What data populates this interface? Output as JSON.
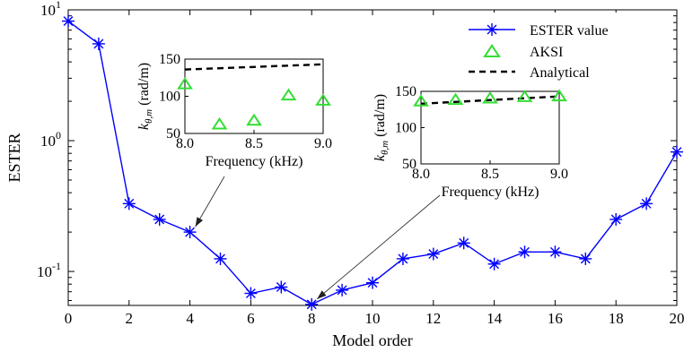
{
  "chart_data": [
    {
      "type": "line",
      "xlabel": "Model order",
      "ylabel": "ESTER",
      "y_scale": "log",
      "xlim": [
        0,
        20
      ],
      "ylim": [
        0.055,
        10
      ],
      "x_ticks": [
        "0",
        "2",
        "4",
        "6",
        "8",
        "10",
        "12",
        "14",
        "16",
        "18",
        "20"
      ],
      "y_ticks": [
        {
          "base": "10",
          "exp": "1",
          "value": 10
        },
        {
          "base": "10",
          "exp": "0",
          "value": 1
        },
        {
          "base": "10",
          "exp": "-1",
          "value": 0.1
        }
      ],
      "legend_position": "top-right",
      "series": [
        {
          "name": "ESTER value",
          "color": "#0000ff",
          "marker": "asterisk",
          "x": [
            0,
            1,
            2,
            3,
            4,
            5,
            6,
            7,
            8,
            9,
            10,
            11,
            12,
            13,
            14,
            15,
            16,
            17,
            18,
            19,
            20
          ],
          "values": [
            8.2,
            5.5,
            0.33,
            0.25,
            0.2,
            0.125,
            0.068,
            0.076,
            0.056,
            0.072,
            0.082,
            0.125,
            0.136,
            0.165,
            0.114,
            0.141,
            0.141,
            0.125,
            0.25,
            0.33,
            0.82
          ]
        }
      ],
      "legend": [
        {
          "label": "ESTER value",
          "style": "blue-line-asterisk"
        },
        {
          "label": "AKSI",
          "style": "green-triangle"
        },
        {
          "label": "Analytical",
          "style": "black-dashed"
        }
      ],
      "annotations": [
        {
          "from_inset": "left",
          "to_x": 4,
          "to_y": 0.2
        },
        {
          "from_inset": "right",
          "to_x": 8,
          "to_y": 0.056
        }
      ]
    },
    {
      "type": "scatter",
      "inset": "left",
      "xlabel": "Frequency (kHz)",
      "ylabel": "k_{θ,m} (rad/m)",
      "xlim": [
        8.0,
        9.0
      ],
      "ylim": [
        50,
        150
      ],
      "x_ticks": [
        "8.0",
        "8.5",
        "9.0"
      ],
      "y_ticks": [
        "50",
        "100",
        "150"
      ],
      "series": [
        {
          "name": "AKSI",
          "color": "#33dd33",
          "x": [
            8.0,
            8.25,
            8.5,
            8.75,
            9.0
          ],
          "values": [
            116,
            62,
            67,
            101,
            94
          ]
        },
        {
          "name": "Analytical",
          "color": "#000000",
          "x": [
            8.0,
            9.0
          ],
          "values": [
            136,
            143
          ]
        }
      ]
    },
    {
      "type": "scatter",
      "inset": "right",
      "xlabel": "Frequency (kHz)",
      "ylabel": "k_{θ,m} (rad/m)",
      "xlim": [
        8.0,
        9.0
      ],
      "ylim": [
        50,
        150
      ],
      "x_ticks": [
        "8.0",
        "8.5",
        "9.0"
      ],
      "y_ticks": [
        "50",
        "100",
        "150"
      ],
      "series": [
        {
          "name": "AKSI",
          "color": "#33dd33",
          "x": [
            8.0,
            8.25,
            8.5,
            8.75,
            9.0
          ],
          "values": [
            136,
            138,
            140,
            142,
            143
          ]
        },
        {
          "name": "Analytical",
          "color": "#000000",
          "x": [
            8.0,
            9.0
          ],
          "values": [
            133,
            143
          ]
        }
      ]
    }
  ]
}
